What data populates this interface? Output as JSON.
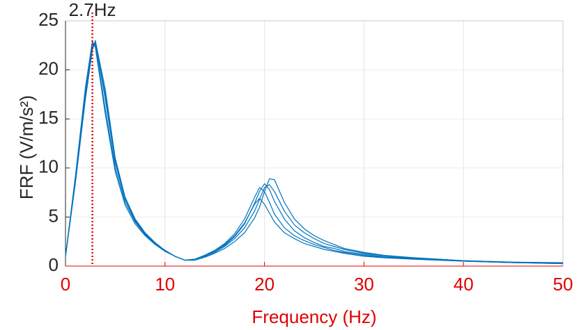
{
  "chart_data": {
    "type": "line",
    "xlabel": "Frequency (Hz)",
    "ylabel": "FRF (V/m/s²)",
    "annotation": {
      "label": "2.7Hz",
      "x": 2.7,
      "color": "#e00000"
    },
    "x": [
      0,
      1,
      2,
      2.7,
      3,
      4,
      5,
      6,
      7,
      8,
      9,
      10,
      11,
      12,
      13,
      14,
      15,
      16,
      17,
      18,
      19,
      19.5,
      20,
      20.5,
      21,
      22,
      23,
      24,
      25,
      26,
      27,
      28,
      30,
      32,
      35,
      40,
      45,
      50
    ],
    "series": [
      {
        "color": "#0072bd",
        "values": [
          1.0,
          9,
          18,
          22.7,
          22.5,
          16,
          10,
          6.5,
          4.5,
          3.2,
          2.3,
          1.6,
          1.0,
          0.6,
          0.7,
          1.1,
          1.6,
          2.3,
          3.3,
          4.8,
          7.0,
          8.0,
          7.6,
          6.5,
          5.3,
          3.9,
          3.1,
          2.6,
          2.2,
          1.9,
          1.6,
          1.4,
          1.1,
          0.9,
          0.75,
          0.5,
          0.35,
          0.25
        ]
      },
      {
        "color": "#0072bd",
        "values": [
          1.0,
          8.5,
          17,
          22,
          23,
          18,
          11,
          7,
          4.8,
          3.4,
          2.4,
          1.6,
          1.0,
          0.6,
          0.6,
          0.9,
          1.3,
          1.8,
          2.5,
          3.4,
          4.9,
          6.0,
          7.6,
          8.9,
          8.8,
          6.5,
          4.8,
          3.8,
          3.1,
          2.6,
          2.2,
          1.8,
          1.4,
          1.1,
          0.85,
          0.55,
          0.4,
          0.35
        ]
      },
      {
        "color": "#0072bd",
        "values": [
          1.0,
          8.8,
          17.5,
          22.4,
          22.8,
          17,
          10.5,
          6.8,
          4.6,
          3.3,
          2.3,
          1.6,
          1.0,
          0.6,
          0.7,
          1.0,
          1.5,
          2.1,
          3.0,
          4.3,
          6.4,
          7.6,
          8.4,
          7.8,
          6.6,
          4.8,
          3.6,
          2.9,
          2.4,
          2.0,
          1.8,
          1.5,
          1.2,
          0.95,
          0.8,
          0.5,
          0.35,
          0.3
        ]
      },
      {
        "color": "#0072bd",
        "values": [
          1.0,
          9.2,
          18.2,
          22.9,
          22.3,
          15.5,
          9.6,
          6.2,
          4.3,
          3.1,
          2.2,
          1.5,
          1.0,
          0.6,
          0.7,
          1.1,
          1.6,
          2.2,
          3.1,
          4.4,
          6.3,
          6.9,
          6.3,
          5.4,
          4.5,
          3.4,
          2.8,
          2.3,
          2.0,
          1.7,
          1.5,
          1.3,
          1.0,
          0.85,
          0.7,
          0.5,
          0.35,
          0.25
        ]
      },
      {
        "color": "#0072bd",
        "values": [
          1.0,
          8.7,
          17.3,
          22.2,
          22.7,
          17.5,
          10.8,
          6.9,
          4.7,
          3.3,
          2.3,
          1.6,
          1.0,
          0.6,
          0.7,
          1.0,
          1.4,
          2.0,
          2.8,
          3.9,
          5.6,
          6.8,
          8.0,
          8.3,
          7.6,
          5.6,
          4.2,
          3.4,
          2.8,
          2.3,
          2.0,
          1.7,
          1.3,
          1.05,
          0.85,
          0.55,
          0.4,
          0.3
        ]
      }
    ],
    "xlim": [
      0,
      50
    ],
    "xticks": [
      0,
      10,
      20,
      30,
      40,
      50
    ],
    "ylim": [
      0,
      25
    ],
    "yticks": [
      0,
      5,
      10,
      15,
      20,
      25
    ],
    "grid": true,
    "xaxis_color": "#e00000"
  }
}
